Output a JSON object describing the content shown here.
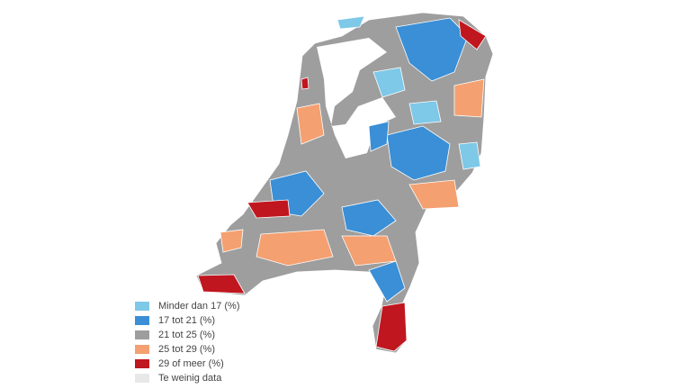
{
  "legend": {
    "items": [
      {
        "label": "Minder dan 17 (%)",
        "color": "#7ec8e8"
      },
      {
        "label": "17 tot 21 (%)",
        "color": "#3a8fd6"
      },
      {
        "label": "21 tot 25 (%)",
        "color": "#9e9e9e"
      },
      {
        "label": "25 tot 29 (%)",
        "color": "#f4a070"
      },
      {
        "label": "29 of meer (%)",
        "color": "#c0161f"
      },
      {
        "label": "Te weinig data",
        "color": "#e8e8e8"
      }
    ]
  }
}
